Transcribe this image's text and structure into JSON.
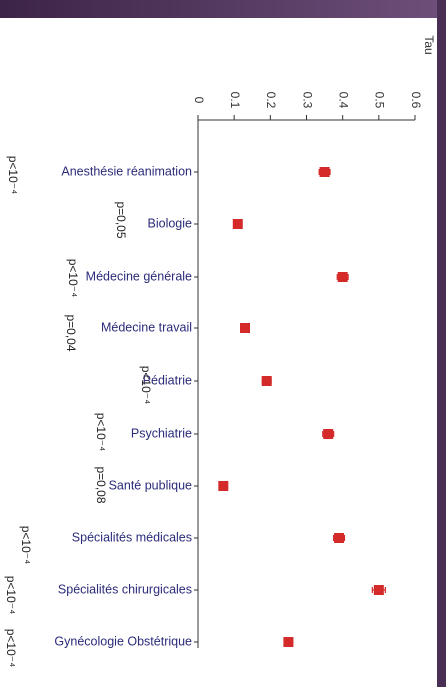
{
  "chart_data": {
    "type": "dot",
    "y_axis_label": "Tau",
    "categories": [
      "Anesthésie réanimation",
      "Biologie",
      "Médecine générale",
      "Médecine travail",
      "Pédiatrie",
      "Psychiatrie",
      "Santé publique",
      "Spécialités médicales",
      "Spécialités chirurgicales",
      "Gynécologie Obstétrique"
    ],
    "values": [
      0.35,
      0.11,
      0.4,
      0.13,
      0.19,
      0.36,
      0.07,
      0.39,
      0.5,
      0.25
    ],
    "errors": [
      0.015,
      0.01,
      0.015,
      0.01,
      0.012,
      0.015,
      0.01,
      0.015,
      0.018,
      0.012
    ],
    "annotations": [
      "p<10⁻⁴",
      "p=0,05",
      "p<10⁻⁴",
      "p=0,04",
      "p<10⁻⁴",
      "p<10⁻⁴",
      "p=0,08",
      "p<10⁻⁴",
      "p<10⁻⁴",
      "p<10⁻⁴"
    ],
    "color": "#d42a2a",
    "ylim": [
      0,
      0.6
    ],
    "yticks": [
      0,
      0.1,
      0.2,
      0.3,
      0.4,
      0.5,
      0.6
    ]
  }
}
